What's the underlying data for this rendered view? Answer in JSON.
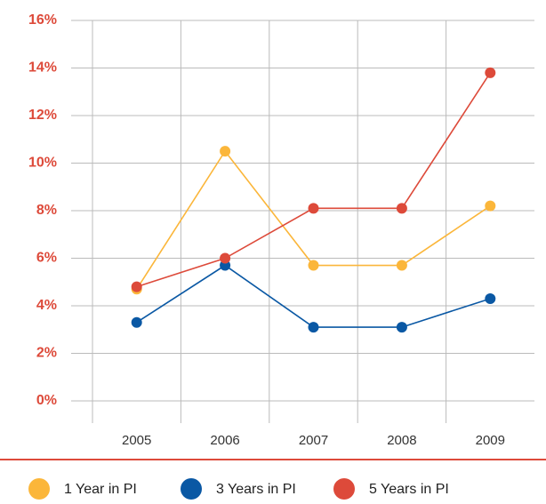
{
  "chart_data": {
    "type": "line",
    "categories": [
      "2005",
      "2006",
      "2007",
      "2008",
      "2009"
    ],
    "series": [
      {
        "name": "1 Year in PI",
        "color": "#fbb63a",
        "values": [
          4.7,
          10.5,
          5.7,
          5.7,
          8.2
        ]
      },
      {
        "name": "3 Years in PI",
        "color": "#0a58a4",
        "values": [
          3.3,
          5.7,
          3.1,
          3.1,
          4.3
        ]
      },
      {
        "name": "5 Years in PI",
        "color": "#dd4a3a",
        "values": [
          4.8,
          6.0,
          8.1,
          8.1,
          13.8
        ]
      }
    ],
    "ylim": [
      0,
      16
    ],
    "yticks": [
      {
        "value": 0,
        "label": "0%"
      },
      {
        "value": 2,
        "label": "2%"
      },
      {
        "value": 4,
        "label": "4%"
      },
      {
        "value": 6,
        "label": "6%"
      },
      {
        "value": 8,
        "label": "8%"
      },
      {
        "value": 10,
        "label": "10%"
      },
      {
        "value": 12,
        "label": "12%"
      },
      {
        "value": 14,
        "label": "14%"
      },
      {
        "value": 16,
        "label": "16%"
      }
    ],
    "grid": true,
    "legend": "bottom"
  }
}
